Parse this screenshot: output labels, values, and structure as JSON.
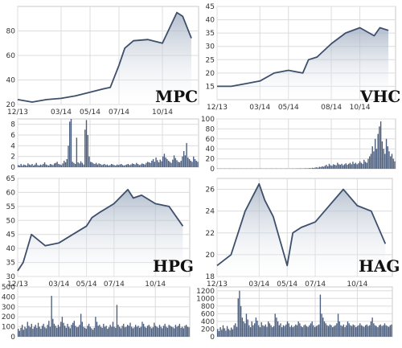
{
  "chart_data": [
    {
      "type": "area",
      "ticker": "MPC",
      "x_tick_labels": [
        "12/13",
        "03/14",
        "05/14",
        "07/14",
        "10/14"
      ],
      "y_tick_labels": [
        "20",
        "40",
        "60",
        "80"
      ],
      "ylim": [
        20,
        100
      ],
      "grid": true,
      "series": [
        {
          "x": [
            "12/13",
            "01/14",
            "02/14",
            "03/14",
            "04/14",
            "05/14",
            "06/14",
            "06/14",
            "07/14",
            "07/14",
            "08/14",
            "09/14",
            "10/14",
            "11/14",
            "11/14",
            "12/14"
          ],
          "y": [
            24,
            22,
            24,
            25,
            27,
            30,
            33,
            34,
            52,
            66,
            72,
            73,
            70,
            95,
            92,
            74
          ]
        }
      ],
      "volume": {
        "y_tick_labels": [
          "0",
          "2",
          "4",
          "6",
          "8"
        ],
        "ylim": [
          0,
          9
        ],
        "values": [
          0.4,
          0.3,
          0.6,
          0.3,
          0.5,
          0.4,
          0.3,
          0.7,
          0.5,
          0.4,
          0.6,
          0.3,
          0.5,
          0.8,
          0.4,
          0.3,
          0.5,
          0.4,
          0.6,
          0.9,
          0.5,
          0.4,
          0.3,
          0.6,
          0.5,
          0.4,
          0.7,
          0.8,
          1.0,
          0.6,
          0.5,
          0.4,
          0.7,
          1.2,
          0.9,
          1.5,
          4.0,
          8.5,
          9.0,
          1.0,
          0.8,
          0.6,
          5.5,
          0.9,
          0.7,
          1.1,
          0.8,
          0.5,
          7.0,
          8.8,
          6.0,
          2.0,
          1.0,
          0.9,
          0.7,
          0.6,
          0.8,
          0.5,
          0.7,
          0.6,
          0.4,
          0.5,
          0.6,
          0.4,
          0.5,
          0.3,
          0.4,
          0.6,
          0.5,
          0.4,
          0.3,
          0.5,
          0.4,
          0.5,
          0.6,
          0.4,
          0.3,
          0.4,
          0.5,
          0.6,
          0.4,
          0.5,
          0.7,
          0.6,
          0.5,
          0.8,
          0.6,
          0.4,
          0.5,
          0.7,
          0.6,
          0.5,
          0.8,
          1.0,
          0.9,
          0.8,
          1.2,
          1.5,
          1.0,
          1.8,
          1.3,
          0.9,
          1.4,
          1.1,
          2.0,
          2.5,
          1.8,
          1.5,
          1.2,
          1.0,
          0.8,
          1.4,
          2.2,
          1.7,
          1.3,
          1.0,
          0.9,
          1.2,
          2.0,
          3.0,
          2.2,
          4.5,
          1.8,
          1.5,
          1.2,
          1.0,
          2.0,
          1.5,
          1.2,
          1.0
        ]
      }
    },
    {
      "type": "area",
      "ticker": "VHC",
      "x_tick_labels": [
        "12/13",
        "03/14",
        "05/14",
        "08/14",
        "10/14"
      ],
      "y_tick_labels": [
        "15",
        "20",
        "25",
        "30",
        "35",
        "40",
        "45"
      ],
      "ylim": [
        10,
        45
      ],
      "grid": true,
      "series": [
        {
          "x": [
            "12/13",
            "01/14",
            "02/14",
            "03/14",
            "04/14",
            "05/14",
            "06/14",
            "06/14",
            "07/14",
            "08/14",
            "09/14",
            "10/14",
            "11/14",
            "11/14",
            "12/14"
          ],
          "y": [
            15,
            15,
            16,
            17,
            20,
            21,
            20,
            25,
            26,
            31,
            35,
            37,
            34,
            37,
            36
          ]
        }
      ],
      "volume": {
        "y_tick_labels": [
          "0",
          "20",
          "40",
          "60",
          "80",
          "100"
        ],
        "ylim": [
          0,
          100
        ],
        "values": [
          0.5,
          0.4,
          0.6,
          0.5,
          0.4,
          0.6,
          0.5,
          0.4,
          0.5,
          0.6,
          0.4,
          0.5,
          0.6,
          0.4,
          0.5,
          0.5,
          0.4,
          0.6,
          0.5,
          0.4,
          0.5,
          0.6,
          0.4,
          0.5,
          0.6,
          0.5,
          0.4,
          0.5,
          0.6,
          0.4,
          0.5,
          0.6,
          0.5,
          0.4,
          0.5,
          0.6,
          0.4,
          0.5,
          0.5,
          0.6,
          0.4,
          0.5,
          0.6,
          0.5,
          0.4,
          0.6,
          0.5,
          0.4,
          0.5,
          0.6,
          0.5,
          0.4,
          0.6,
          0.5,
          0.7,
          0.5,
          0.6,
          0.8,
          0.6,
          1.0,
          0.8,
          0.6,
          0.9,
          1.2,
          0.8,
          1.0,
          1.5,
          1.2,
          2.0,
          1.5,
          2.5,
          3.0,
          2.0,
          4.0,
          3.5,
          5.0,
          4.0,
          6.0,
          8.0,
          5.0,
          10.0,
          7.0,
          6.0,
          9.0,
          8.0,
          7.0,
          12.0,
          9.0,
          8.0,
          10.0,
          7.0,
          9.0,
          11.0,
          8.0,
          10.0,
          12.0,
          9.0,
          14.0,
          10.0,
          12.0,
          9.0,
          11.0,
          15.0,
          12.0,
          10.0,
          18.0,
          14.0,
          12.0,
          20.0,
          25.0,
          30.0,
          45.0,
          35.0,
          60.0,
          40.0,
          70.0,
          85.0,
          95.0,
          55.0,
          40.0,
          30.0,
          60.0,
          45.0,
          35.0,
          25.0,
          30.0,
          20.0,
          15.0
        ]
      }
    },
    {
      "type": "area",
      "ticker": "HPG",
      "x_tick_labels": [
        "12/13",
        "03/14",
        "05/14",
        "07/14",
        "10/14"
      ],
      "y_tick_labels": [
        "30",
        "35",
        "40",
        "45",
        "50",
        "55",
        "60",
        "65"
      ],
      "ylim": [
        30,
        65
      ],
      "grid": true,
      "series": [
        {
          "x": [
            "12/13",
            "12/13",
            "01/14",
            "02/14",
            "03/14",
            "04/14",
            "05/14",
            "05/14",
            "06/14",
            "07/14",
            "08/14",
            "08/14",
            "09/14",
            "10/14",
            "11/14",
            "12/14"
          ],
          "y": [
            32,
            35,
            45,
            41,
            42,
            45,
            48,
            51,
            53,
            56,
            61,
            58,
            59,
            56,
            55,
            48
          ]
        }
      ],
      "volume": {
        "y_tick_labels": [
          "0",
          "100",
          "200",
          "300",
          "400",
          "500"
        ],
        "ylim": [
          0,
          500
        ],
        "values": [
          80,
          60,
          90,
          120,
          70,
          100,
          85,
          150,
          110,
          95,
          130,
          80,
          100,
          120,
          90,
          140,
          100,
          80,
          110,
          130,
          95,
          85,
          120,
          160,
          100,
          410,
          180,
          130,
          110,
          90,
          120,
          100,
          150,
          200,
          140,
          110,
          90,
          130,
          100,
          85,
          120,
          140,
          160,
          110,
          95,
          100,
          120,
          230,
          150,
          100,
          90,
          80,
          110,
          130,
          100,
          85,
          70,
          90,
          200,
          150,
          110,
          120,
          100,
          90,
          130,
          100,
          110,
          80,
          95,
          120,
          100,
          150,
          100,
          90,
          320,
          120,
          100,
          85,
          110,
          130,
          95,
          100,
          120,
          110,
          140,
          100,
          85,
          95,
          120,
          100,
          110,
          90,
          100,
          150,
          130,
          100,
          90,
          110,
          120,
          100,
          85,
          95,
          140,
          110,
          100,
          90,
          120,
          100,
          85,
          110,
          130,
          100,
          90,
          120,
          110,
          100,
          95,
          85,
          120,
          100,
          110,
          130,
          90,
          100,
          85,
          110,
          120,
          100,
          95
        ]
      }
    },
    {
      "type": "area",
      "ticker": "HAG",
      "x_tick_labels": [
        "12/13",
        "03/14",
        "05/14",
        "07/14",
        "10/14"
      ],
      "y_tick_labels": [
        "18",
        "20",
        "22",
        "24",
        "26"
      ],
      "ylim": [
        18,
        27
      ],
      "grid": true,
      "series": [
        {
          "x": [
            "12/13",
            "01/14",
            "02/14",
            "03/14",
            "03/14",
            "04/14",
            "05/14",
            "05/14",
            "06/14",
            "07/14",
            "08/14",
            "09/14",
            "10/14",
            "11/14",
            "12/14"
          ],
          "y": [
            19,
            20,
            24,
            26.5,
            25,
            23.5,
            19,
            22,
            22.5,
            23,
            24.5,
            26,
            24.5,
            24,
            21
          ]
        }
      ],
      "volume": {
        "y_tick_labels": [
          "0",
          "200",
          "400",
          "600",
          "800",
          "1000",
          "1200"
        ],
        "ylim": [
          0,
          1300
        ],
        "values": [
          200,
          150,
          250,
          180,
          300,
          220,
          160,
          280,
          200,
          170,
          240,
          190,
          300,
          350,
          260,
          1000,
          1200,
          800,
          500,
          400,
          350,
          600,
          450,
          300,
          250,
          400,
          300,
          350,
          500,
          420,
          300,
          250,
          380,
          300,
          280,
          320,
          260,
          400,
          350,
          300,
          250,
          280,
          600,
          500,
          400,
          300,
          350,
          250,
          300,
          280,
          320,
          400,
          350,
          260,
          300,
          250,
          280,
          320,
          300,
          400,
          350,
          280,
          250,
          300,
          320,
          280,
          260,
          300,
          350,
          400,
          300,
          250,
          280,
          300,
          320,
          1100,
          600,
          500,
          400,
          350,
          300,
          280,
          320,
          300,
          250,
          280,
          300,
          350,
          600,
          400,
          300,
          280,
          320,
          250,
          300,
          400,
          350,
          300,
          280,
          320,
          300,
          250,
          280,
          300,
          350,
          300,
          280,
          260,
          300,
          320,
          280,
          300,
          400,
          500,
          350,
          300,
          280,
          250,
          300,
          320,
          280,
          300,
          350,
          300,
          280,
          260,
          300,
          320
        ]
      }
    }
  ]
}
